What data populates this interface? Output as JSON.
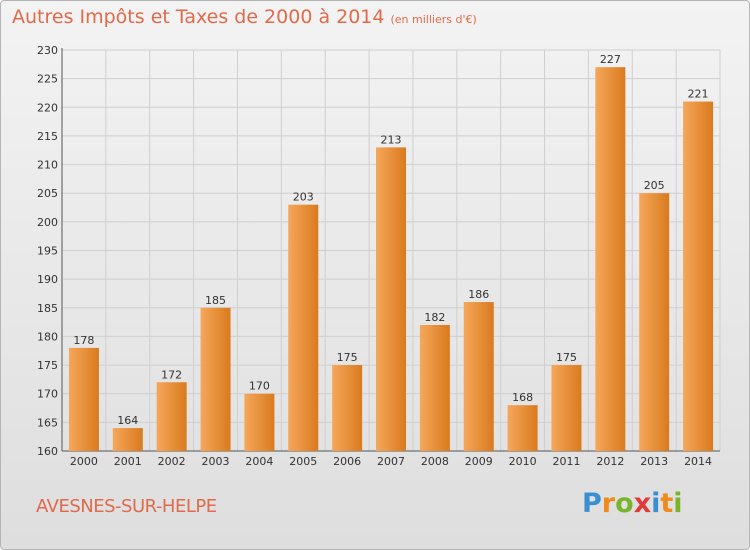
{
  "header": {
    "title": "Autres Impôts et Taxes de 2000 à 2014",
    "subtitle": "(en milliers d'€)"
  },
  "footer": {
    "city": "AVESNES-SUR-HELPE",
    "logo": "Proxiti",
    "logo_letters": [
      {
        "char": "P",
        "color": "#3a8fd0"
      },
      {
        "char": "r",
        "color": "#f08a1a"
      },
      {
        "char": "o",
        "color": "#7ab32e"
      },
      {
        "char": "x",
        "color": "#e23a3a"
      },
      {
        "char": "i",
        "color": "#3a8fd0"
      },
      {
        "char": "t",
        "color": "#f08a1a"
      },
      {
        "char": "i",
        "color": "#7ab32e"
      }
    ]
  },
  "colors": {
    "title": "#e06a4a",
    "bar_light": "#f5a75a",
    "bar_dark": "#d97a1e",
    "grid": "#cfcfcf",
    "axis_text": "#333333"
  },
  "chart_data": {
    "type": "bar",
    "categories": [
      "2000",
      "2001",
      "2002",
      "2003",
      "2004",
      "2005",
      "2006",
      "2007",
      "2008",
      "2009",
      "2010",
      "2011",
      "2012",
      "2013",
      "2014"
    ],
    "values": [
      178,
      164,
      172,
      185,
      170,
      203,
      175,
      213,
      182,
      186,
      168,
      175,
      227,
      205,
      221
    ],
    "ylim": [
      160,
      230
    ],
    "yticks": [
      160,
      165,
      170,
      175,
      180,
      185,
      190,
      195,
      200,
      205,
      210,
      215,
      220,
      225,
      230
    ],
    "grid": true,
    "data_labels": true
  }
}
